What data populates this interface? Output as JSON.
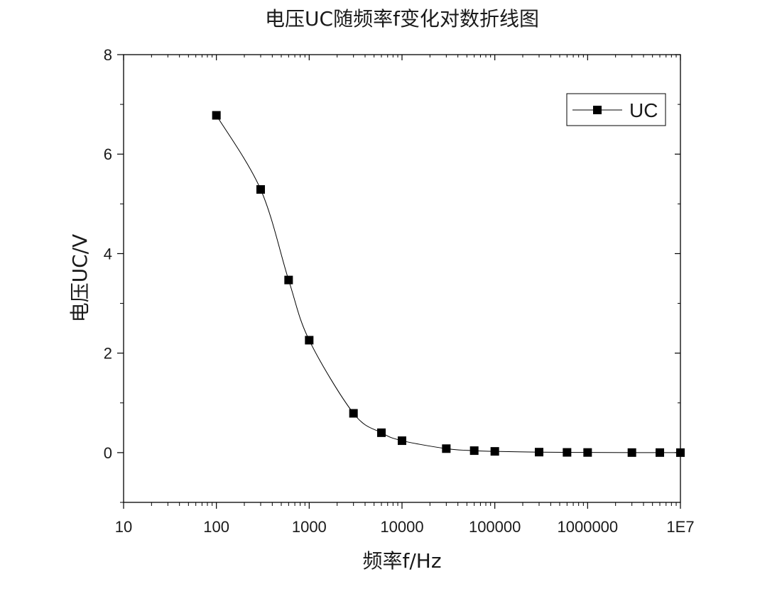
{
  "chart_data": {
    "type": "line",
    "title": "电压UC随频率f变化对数折线图",
    "xlabel": "频率f/Hz",
    "ylabel": "电压UC/V",
    "x_scale": "log",
    "xlim": [
      10,
      10000000
    ],
    "ylim": [
      -1,
      8
    ],
    "x_ticks": [
      10,
      100,
      1000,
      10000,
      100000,
      1000000,
      10000000
    ],
    "x_tick_labels": [
      "10",
      "100",
      "1000",
      "10000",
      "100000",
      "1000000",
      "1E7"
    ],
    "y_ticks": [
      0,
      2,
      4,
      6,
      8
    ],
    "y_tick_labels": [
      "0",
      "2",
      "4",
      "6",
      "8"
    ],
    "grid": false,
    "legend_position": "top-right",
    "series": [
      {
        "name": "UC",
        "color": "#000000",
        "marker": "square",
        "line": "smooth",
        "x": [
          100,
          300,
          600,
          1000,
          3000,
          6000,
          10000,
          30000,
          60000,
          100000,
          300000,
          600000,
          1000000,
          3000000,
          6000000,
          10000000
        ],
        "y": [
          6.78,
          5.29,
          3.47,
          2.26,
          0.79,
          0.4,
          0.24,
          0.08,
          0.04,
          0.025,
          0.01,
          0.005,
          0.003,
          0.001,
          0.001,
          0.0
        ]
      }
    ]
  }
}
